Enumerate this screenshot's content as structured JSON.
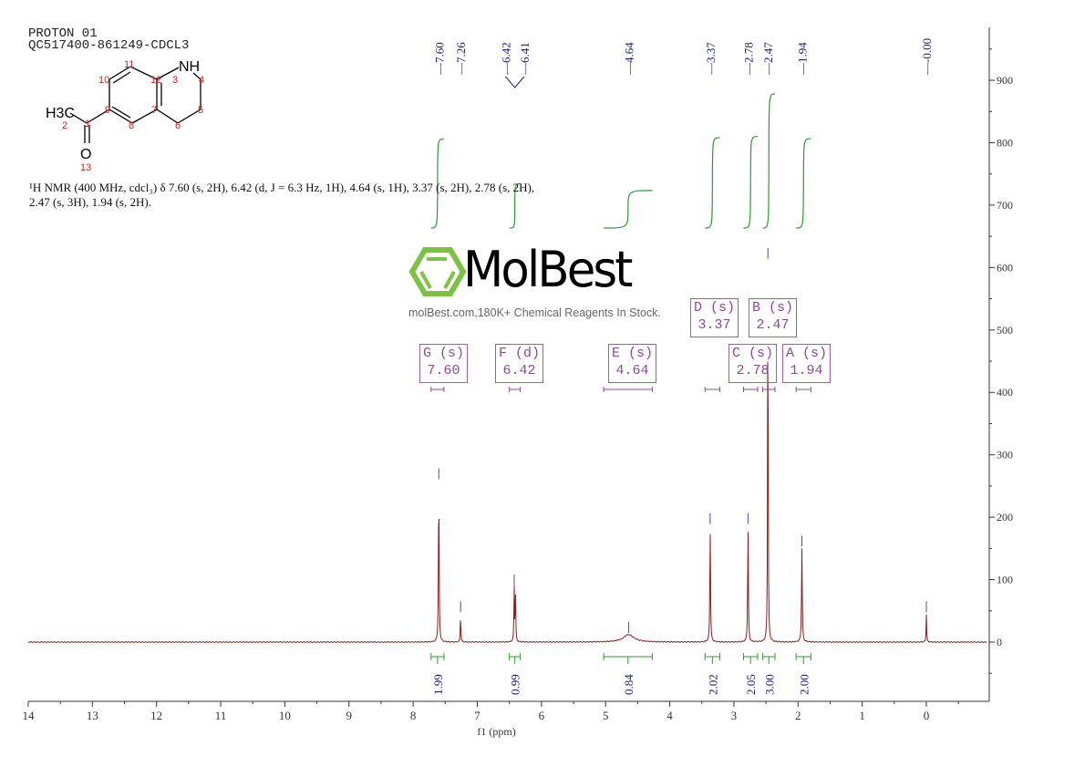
{
  "header": {
    "line1": "PROTON 01",
    "line2": "QC517400-861249-CDCL3"
  },
  "summary": "¹H NMR (400 MHz, cdcl₃) δ 7.60 (s, 2H), 6.42 (d, J = 6.3 Hz, 1H), 4.64 (s, 1H), 3.37 (s, 2H), 2.78 (s, 2H), 2.47 (s, 3H), 1.94 (s, 2H).",
  "structure": {
    "atoms": {
      "nh": "NH",
      "h3c": "H3C",
      "o": "O"
    },
    "numbers": [
      "1",
      "2",
      "3",
      "4",
      "5",
      "6",
      "7",
      "8",
      "9",
      "10",
      "11",
      "12",
      "13"
    ]
  },
  "watermark": {
    "brand": "MolBest",
    "tagline": "molBest.com,180K+ Chemical Reagents In Stock.",
    "color": "#7dc242"
  },
  "chart_data": {
    "type": "line",
    "xlabel": "f1 (ppm)",
    "xlim": [
      14,
      -0.94
    ],
    "ylim": [
      -95,
      990
    ],
    "x_ticks": [
      14,
      13,
      12,
      11,
      10,
      9,
      8,
      7,
      6,
      5,
      4,
      3,
      2,
      1,
      0
    ],
    "y_ticks": [
      0,
      100,
      200,
      300,
      400,
      500,
      600,
      700,
      800,
      900
    ],
    "line_color": "#8b1a1a",
    "integral_color": "#2e9a2e",
    "label_color": "#1a1a80",
    "peak_labels": [
      "7.60",
      "7.26",
      "6.42",
      "6.41",
      "4.64",
      "3.37",
      "2.78",
      "2.47",
      "1.94",
      "-0.00"
    ],
    "peaks": [
      {
        "ppm": 7.6,
        "height": 258,
        "width": 0.012
      },
      {
        "ppm": 7.26,
        "height": 45,
        "width": 0.01
      },
      {
        "ppm": 6.425,
        "height": 88,
        "width": 0.01
      },
      {
        "ppm": 6.405,
        "height": 86,
        "width": 0.01
      },
      {
        "ppm": 4.64,
        "height": 12,
        "width": 0.2
      },
      {
        "ppm": 3.37,
        "height": 186,
        "width": 0.012
      },
      {
        "ppm": 2.78,
        "height": 186,
        "width": 0.012
      },
      {
        "ppm": 2.47,
        "height": 611,
        "width": 0.01
      },
      {
        "ppm": 1.94,
        "height": 150,
        "width": 0.013
      },
      {
        "ppm": 0.0,
        "height": 45,
        "width": 0.01
      }
    ],
    "integrals": [
      {
        "from": 7.72,
        "to": 7.52,
        "value": "1.99"
      },
      {
        "from": 6.5,
        "to": 6.33,
        "value": "0.99"
      },
      {
        "from": 5.03,
        "to": 4.27,
        "value": "0.84"
      },
      {
        "from": 3.45,
        "to": 3.22,
        "value": "2.02"
      },
      {
        "from": 2.85,
        "to": 2.63,
        "value": "2.05"
      },
      {
        "from": 2.55,
        "to": 2.36,
        "value": "3.00"
      },
      {
        "from": 2.03,
        "to": 1.8,
        "value": "2.00"
      }
    ],
    "multiplets": [
      {
        "label": "G (s)",
        "shift": "7.60",
        "from": 7.72,
        "to": 7.52,
        "row": 2
      },
      {
        "label": "F (d)",
        "shift": "6.42",
        "from": 6.5,
        "to": 6.33,
        "row": 2
      },
      {
        "label": "E (s)",
        "shift": "4.64",
        "from": 5.03,
        "to": 4.27,
        "row": 2
      },
      {
        "label": "D (s)",
        "shift": "3.37",
        "from": 3.45,
        "to": 3.22,
        "row": 1
      },
      {
        "label": "B (s)",
        "shift": "2.47",
        "from": 2.55,
        "to": 2.36,
        "row": 1
      },
      {
        "label": "C (s)",
        "shift": "2.78",
        "from": 2.85,
        "to": 2.63,
        "row": 2
      },
      {
        "label": "A (s)",
        "shift": "1.94",
        "from": 2.03,
        "to": 1.8,
        "row": 2
      }
    ]
  }
}
